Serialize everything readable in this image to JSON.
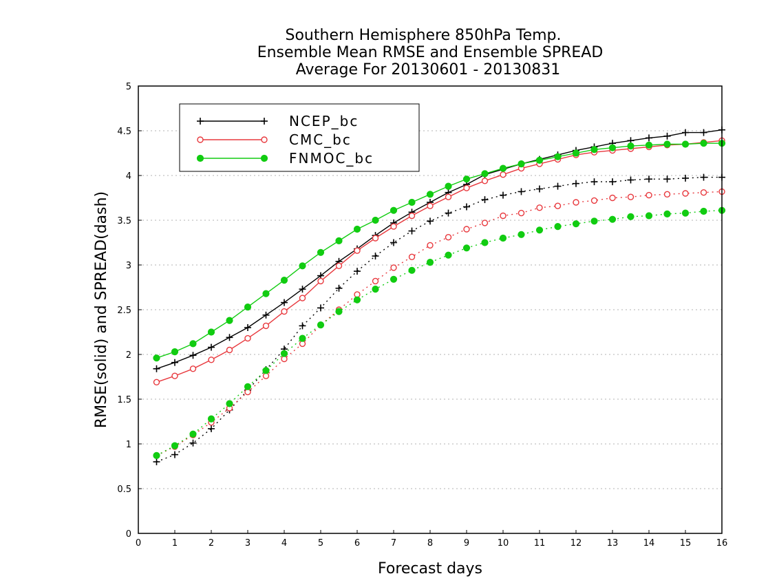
{
  "chart_data": {
    "type": "line",
    "title": [
      "Southern Hemisphere 850hPa Temp.",
      "Ensemble Mean RMSE and Ensemble SPREAD",
      "Average For 20130601 - 20130831"
    ],
    "xlabel": "Forecast days",
    "ylabel": "RMSE(solid) and SPREAD(dash)",
    "xlim": [
      0,
      16
    ],
    "ylim": [
      0,
      5
    ],
    "xticks": [
      "0",
      "1",
      "2",
      "3",
      "4",
      "5",
      "6",
      "7",
      "8",
      "9",
      "10",
      "11",
      "12",
      "13",
      "14",
      "15",
      "16"
    ],
    "yticks": [
      "0",
      "0.5",
      "1",
      "1.5",
      "2",
      "2.5",
      "3",
      "3.5",
      "4",
      "4.5",
      "5"
    ],
    "grid": true,
    "legend_position": "top-left",
    "x": [
      0.5,
      1,
      1.5,
      2,
      2.5,
      3,
      3.5,
      4,
      4.5,
      5,
      5.5,
      6,
      6.5,
      7,
      7.5,
      8,
      8.5,
      9,
      9.5,
      10,
      10.5,
      11,
      11.5,
      12,
      12.5,
      13,
      13.5,
      14,
      14.5,
      15,
      15.5,
      16
    ],
    "series": [
      {
        "name": "NCEP_bc",
        "metric": "RMSE",
        "style": "solid",
        "marker": "plus",
        "color": "#000000",
        "values": [
          1.84,
          1.91,
          1.99,
          2.08,
          2.19,
          2.3,
          2.44,
          2.58,
          2.73,
          2.88,
          3.04,
          3.18,
          3.33,
          3.47,
          3.59,
          3.7,
          3.81,
          3.9,
          4.01,
          4.07,
          4.13,
          4.18,
          4.23,
          4.28,
          4.32,
          4.36,
          4.39,
          4.42,
          4.44,
          4.48,
          4.48,
          4.51
        ]
      },
      {
        "name": "CMC_bc",
        "metric": "RMSE",
        "style": "solid",
        "marker": "open-circle",
        "color": "#e8383d",
        "values": [
          1.69,
          1.76,
          1.84,
          1.94,
          2.05,
          2.18,
          2.32,
          2.48,
          2.63,
          2.82,
          2.99,
          3.16,
          3.3,
          3.43,
          3.55,
          3.66,
          3.76,
          3.86,
          3.94,
          4.01,
          4.08,
          4.13,
          4.18,
          4.23,
          4.26,
          4.28,
          4.3,
          4.32,
          4.34,
          4.35,
          4.37,
          4.39
        ]
      },
      {
        "name": "FNMOC_bc",
        "metric": "RMSE",
        "style": "solid",
        "marker": "filled-circle",
        "color": "#11cc11",
        "values": [
          1.96,
          2.03,
          2.12,
          2.25,
          2.38,
          2.53,
          2.68,
          2.83,
          2.99,
          3.14,
          3.27,
          3.4,
          3.5,
          3.61,
          3.7,
          3.79,
          3.88,
          3.96,
          4.02,
          4.08,
          4.13,
          4.17,
          4.21,
          4.25,
          4.29,
          4.31,
          4.33,
          4.34,
          4.35,
          4.35,
          4.36,
          4.36
        ]
      },
      {
        "name": "NCEP_bc",
        "metric": "SPREAD",
        "style": "dash",
        "marker": "plus",
        "color": "#000000",
        "values": [
          0.8,
          0.88,
          1.01,
          1.17,
          1.38,
          1.6,
          1.83,
          2.06,
          2.32,
          2.52,
          2.74,
          2.93,
          3.1,
          3.25,
          3.38,
          3.49,
          3.58,
          3.65,
          3.73,
          3.78,
          3.82,
          3.85,
          3.88,
          3.91,
          3.93,
          3.93,
          3.95,
          3.96,
          3.96,
          3.97,
          3.98,
          3.98
        ]
      },
      {
        "name": "CMC_bc",
        "metric": "SPREAD",
        "style": "dash",
        "marker": "open-circle",
        "color": "#e8383d",
        "values": [
          0.87,
          0.97,
          1.1,
          1.24,
          1.4,
          1.58,
          1.76,
          1.95,
          2.12,
          2.33,
          2.5,
          2.67,
          2.82,
          2.97,
          3.09,
          3.22,
          3.31,
          3.4,
          3.47,
          3.55,
          3.58,
          3.64,
          3.66,
          3.7,
          3.72,
          3.75,
          3.76,
          3.78,
          3.79,
          3.8,
          3.81,
          3.82
        ]
      },
      {
        "name": "FNMOC_bc",
        "metric": "SPREAD",
        "style": "dash",
        "marker": "filled-circle",
        "color": "#11cc11",
        "values": [
          0.87,
          0.98,
          1.11,
          1.28,
          1.45,
          1.64,
          1.82,
          2.01,
          2.18,
          2.33,
          2.48,
          2.61,
          2.73,
          2.84,
          2.94,
          3.03,
          3.11,
          3.19,
          3.25,
          3.3,
          3.34,
          3.39,
          3.43,
          3.46,
          3.49,
          3.51,
          3.54,
          3.55,
          3.57,
          3.58,
          3.6,
          3.61
        ]
      }
    ],
    "legend": [
      "NCEP_bc",
      "CMC_bc",
      "FNMOC_bc"
    ]
  }
}
